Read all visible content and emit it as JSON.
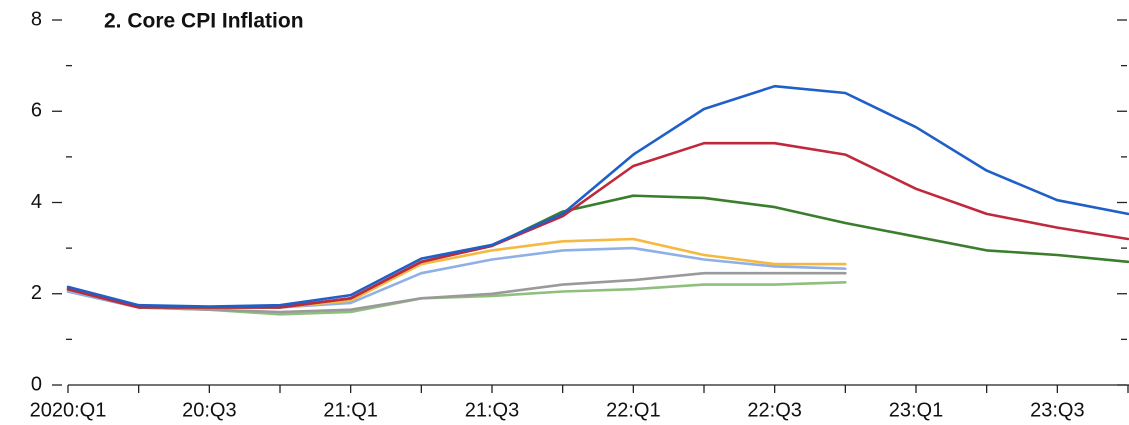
{
  "chart_data": {
    "type": "line",
    "title": "2. Core CPI Inflation",
    "categories": [
      "2020:Q1",
      null,
      "20:Q3",
      null,
      "21:Q1",
      null,
      "21:Q3",
      null,
      "22:Q1",
      null,
      "22:Q3",
      null,
      "23:Q1",
      null,
      "23:Q3",
      null
    ],
    "ylim": [
      0,
      8
    ],
    "yticks": [
      0,
      2,
      4,
      6,
      8
    ],
    "series": [
      {
        "color": "#8fbf7f",
        "values": [
          2.05,
          1.7,
          1.65,
          1.55,
          1.6,
          1.9,
          1.95,
          2.05,
          2.1,
          2.2,
          2.2,
          2.25,
          null,
          null,
          null,
          null
        ]
      },
      {
        "color": "#9a9a9a",
        "values": [
          2.05,
          1.7,
          1.65,
          1.6,
          1.65,
          1.9,
          2.0,
          2.2,
          2.3,
          2.45,
          2.45,
          2.45,
          null,
          null,
          null,
          null
        ]
      },
      {
        "color": "#8fb0e6",
        "values": [
          2.05,
          1.7,
          1.7,
          1.7,
          1.8,
          2.45,
          2.75,
          2.95,
          3.0,
          2.75,
          2.6,
          2.55,
          null,
          null,
          null,
          null
        ]
      },
      {
        "color": "#f5b942",
        "values": [
          2.1,
          1.7,
          1.7,
          1.7,
          1.85,
          2.65,
          2.95,
          3.15,
          3.2,
          2.85,
          2.65,
          2.65,
          null,
          null,
          null,
          null
        ]
      },
      {
        "color": "#3a7d2c",
        "values": [
          2.1,
          1.7,
          1.7,
          1.7,
          1.9,
          2.7,
          3.05,
          3.8,
          4.15,
          4.1,
          3.9,
          3.55,
          3.25,
          2.95,
          2.85,
          2.7
        ]
      },
      {
        "color": "#c0283c",
        "values": [
          2.1,
          1.7,
          1.7,
          1.7,
          1.9,
          2.7,
          3.05,
          3.7,
          4.8,
          5.3,
          5.3,
          5.05,
          4.3,
          3.75,
          3.45,
          3.2
        ]
      },
      {
        "color": "#1f5fc8",
        "values": [
          2.15,
          1.75,
          1.72,
          1.75,
          1.97,
          2.77,
          3.07,
          3.75,
          5.05,
          6.05,
          6.55,
          6.4,
          5.65,
          4.7,
          4.05,
          3.75
        ]
      }
    ]
  }
}
